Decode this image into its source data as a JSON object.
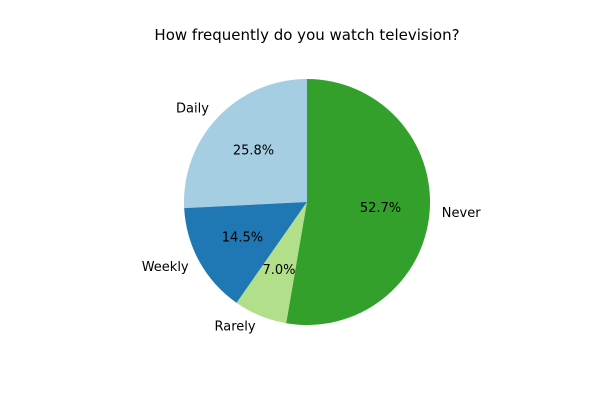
{
  "chart_data": {
    "type": "pie",
    "title": "How frequently do you watch television?",
    "start_angle_deg": 90,
    "direction": "counterclockwise",
    "slices": [
      {
        "label": "Daily",
        "value": 25.8,
        "pct_label": "25.8%",
        "color": "#a6cee3"
      },
      {
        "label": "Weekly",
        "value": 14.5,
        "pct_label": "14.5%",
        "color": "#1f78b4"
      },
      {
        "label": "Rarely",
        "value": 7.0,
        "pct_label": "7.0%",
        "color": "#b2df8a"
      },
      {
        "label": "Never",
        "value": 52.7,
        "pct_label": "52.7%",
        "color": "#33a02c"
      }
    ]
  }
}
